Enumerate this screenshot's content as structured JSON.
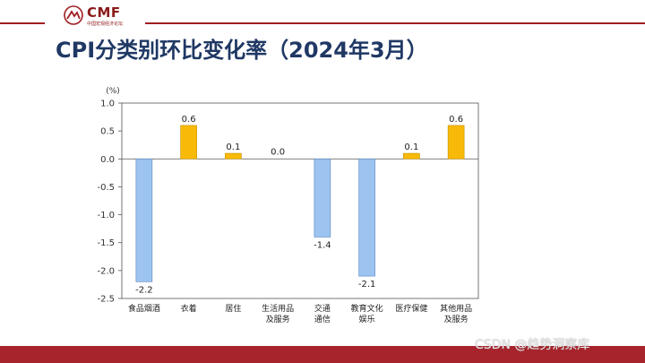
{
  "logo": {
    "name": "CMF",
    "subtitle": "中国宏观经济论坛"
  },
  "header": {
    "title": "CPI分类别环比变化率（2024年3月）"
  },
  "watermark": "CSDN @趋势洞察库",
  "colors": {
    "negative": "#9dc3f0",
    "positive": "#f9b908",
    "title": "#1f3864",
    "brand": "#a01e22"
  },
  "chart_data": {
    "type": "bar",
    "title": "",
    "ylabel": "(%)",
    "ylim": [
      -2.5,
      1.0
    ],
    "yticks": [
      "1.0",
      "0.5",
      "0.0",
      "-0.5",
      "-1.0",
      "-1.5",
      "-2.0",
      "-2.5"
    ],
    "categories": [
      [
        "食品烟酒"
      ],
      [
        "衣着"
      ],
      [
        "居住"
      ],
      [
        "生活用品",
        "及服务"
      ],
      [
        "交通",
        "通信"
      ],
      [
        "教育文化",
        "娱乐"
      ],
      [
        "医疗保健"
      ],
      [
        "其他用品",
        "及服务"
      ]
    ],
    "values": [
      -2.2,
      0.6,
      0.1,
      0.0,
      -1.4,
      -2.1,
      0.1,
      0.6
    ],
    "labels": [
      "-2.2",
      "0.6",
      "0.1",
      "0.0",
      "-1.4",
      "-2.1",
      "0.1",
      "0.6"
    ]
  }
}
